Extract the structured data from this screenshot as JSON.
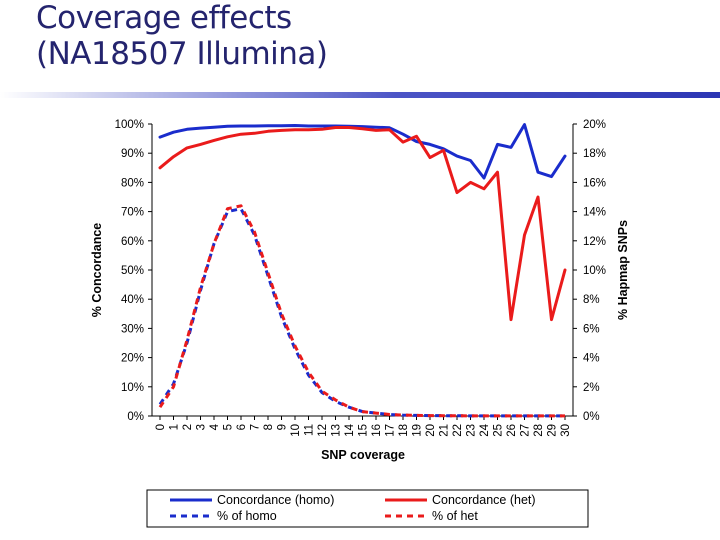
{
  "slide": {
    "title_line1": "Coverage effects",
    "title_line2": "(NA18507 Illumina)"
  },
  "chart_data": {
    "type": "line",
    "x": [
      0,
      1,
      2,
      3,
      4,
      5,
      6,
      7,
      8,
      9,
      10,
      11,
      12,
      13,
      14,
      15,
      16,
      17,
      18,
      19,
      20,
      21,
      22,
      23,
      24,
      25,
      26,
      27,
      28,
      29,
      30
    ],
    "x_tick_labels": [
      "0",
      "1",
      "2",
      "3",
      "4",
      "5",
      "6",
      "7",
      "8",
      "9",
      "10",
      "11",
      "12",
      "13",
      "14",
      "15",
      "16",
      "17",
      "18",
      "19",
      "20",
      "21",
      "22",
      "23",
      "24",
      "25",
      "26",
      "27",
      "28",
      "29",
      "30"
    ],
    "xlabel": "SNP coverage",
    "ylabel_left": "% Concordance",
    "ylabel_right": "% Hapmap SNPs",
    "ylim_left": [
      0,
      100
    ],
    "ylim_right": [
      0,
      20
    ],
    "yticks_left": [
      "0%",
      "10%",
      "20%",
      "30%",
      "40%",
      "50%",
      "60%",
      "70%",
      "80%",
      "90%",
      "100%"
    ],
    "yticks_right": [
      "0%",
      "2%",
      "4%",
      "6%",
      "8%",
      "10%",
      "12%",
      "14%",
      "16%",
      "18%",
      "20%"
    ],
    "grid": false,
    "legend_position": "bottom",
    "series": [
      {
        "name": "Concordance (homo)",
        "axis": "left",
        "color": "#1a2ccc",
        "dash": "solid",
        "values": [
          95.5,
          97.2,
          98.2,
          98.6,
          98.9,
          99.2,
          99.3,
          99.3,
          99.4,
          99.4,
          99.5,
          99.3,
          99.3,
          99.3,
          99.2,
          99.1,
          98.9,
          98.7,
          96.5,
          94.0,
          93.0,
          91.5,
          89.0,
          87.5,
          81.5,
          93.0,
          92.0,
          99.8,
          83.5,
          82.0,
          89.0
        ]
      },
      {
        "name": "Concordance (het)",
        "axis": "left",
        "color": "#ea1b1b",
        "dash": "solid",
        "values": [
          85.0,
          88.8,
          91.8,
          93.0,
          94.4,
          95.6,
          96.5,
          96.8,
          97.5,
          97.8,
          98.0,
          98.0,
          98.2,
          98.8,
          98.8,
          98.4,
          97.8,
          98.0,
          93.8,
          95.8,
          88.5,
          91.0,
          76.5,
          80.0,
          77.8,
          83.5,
          33.0,
          62.0,
          75.0,
          33.0,
          50.0
        ]
      },
      {
        "name": "% of homo",
        "axis": "right",
        "color": "#1a2ccc",
        "dash": "dashed",
        "values": [
          0.8,
          2.2,
          5.0,
          8.6,
          11.8,
          14.0,
          14.2,
          12.4,
          9.6,
          6.8,
          4.6,
          2.8,
          1.6,
          1.0,
          0.6,
          0.3,
          0.2,
          0.1,
          0.06,
          0.04,
          0.03,
          0.02,
          0.02,
          0.01,
          0.01,
          0.01,
          0.01,
          0.01,
          0.01,
          0.01,
          0.01
        ]
      },
      {
        "name": "% of het",
        "axis": "right",
        "color": "#ea1b1b",
        "dash": "dashed",
        "values": [
          0.6,
          2.0,
          5.2,
          8.8,
          11.8,
          14.2,
          14.4,
          12.6,
          9.8,
          7.0,
          4.8,
          3.0,
          1.7,
          1.1,
          0.6,
          0.3,
          0.2,
          0.1,
          0.06,
          0.04,
          0.03,
          0.02,
          0.02,
          0.01,
          0.01,
          0.01,
          0.01,
          0.01,
          0.01,
          0.01,
          0.01
        ]
      }
    ]
  }
}
